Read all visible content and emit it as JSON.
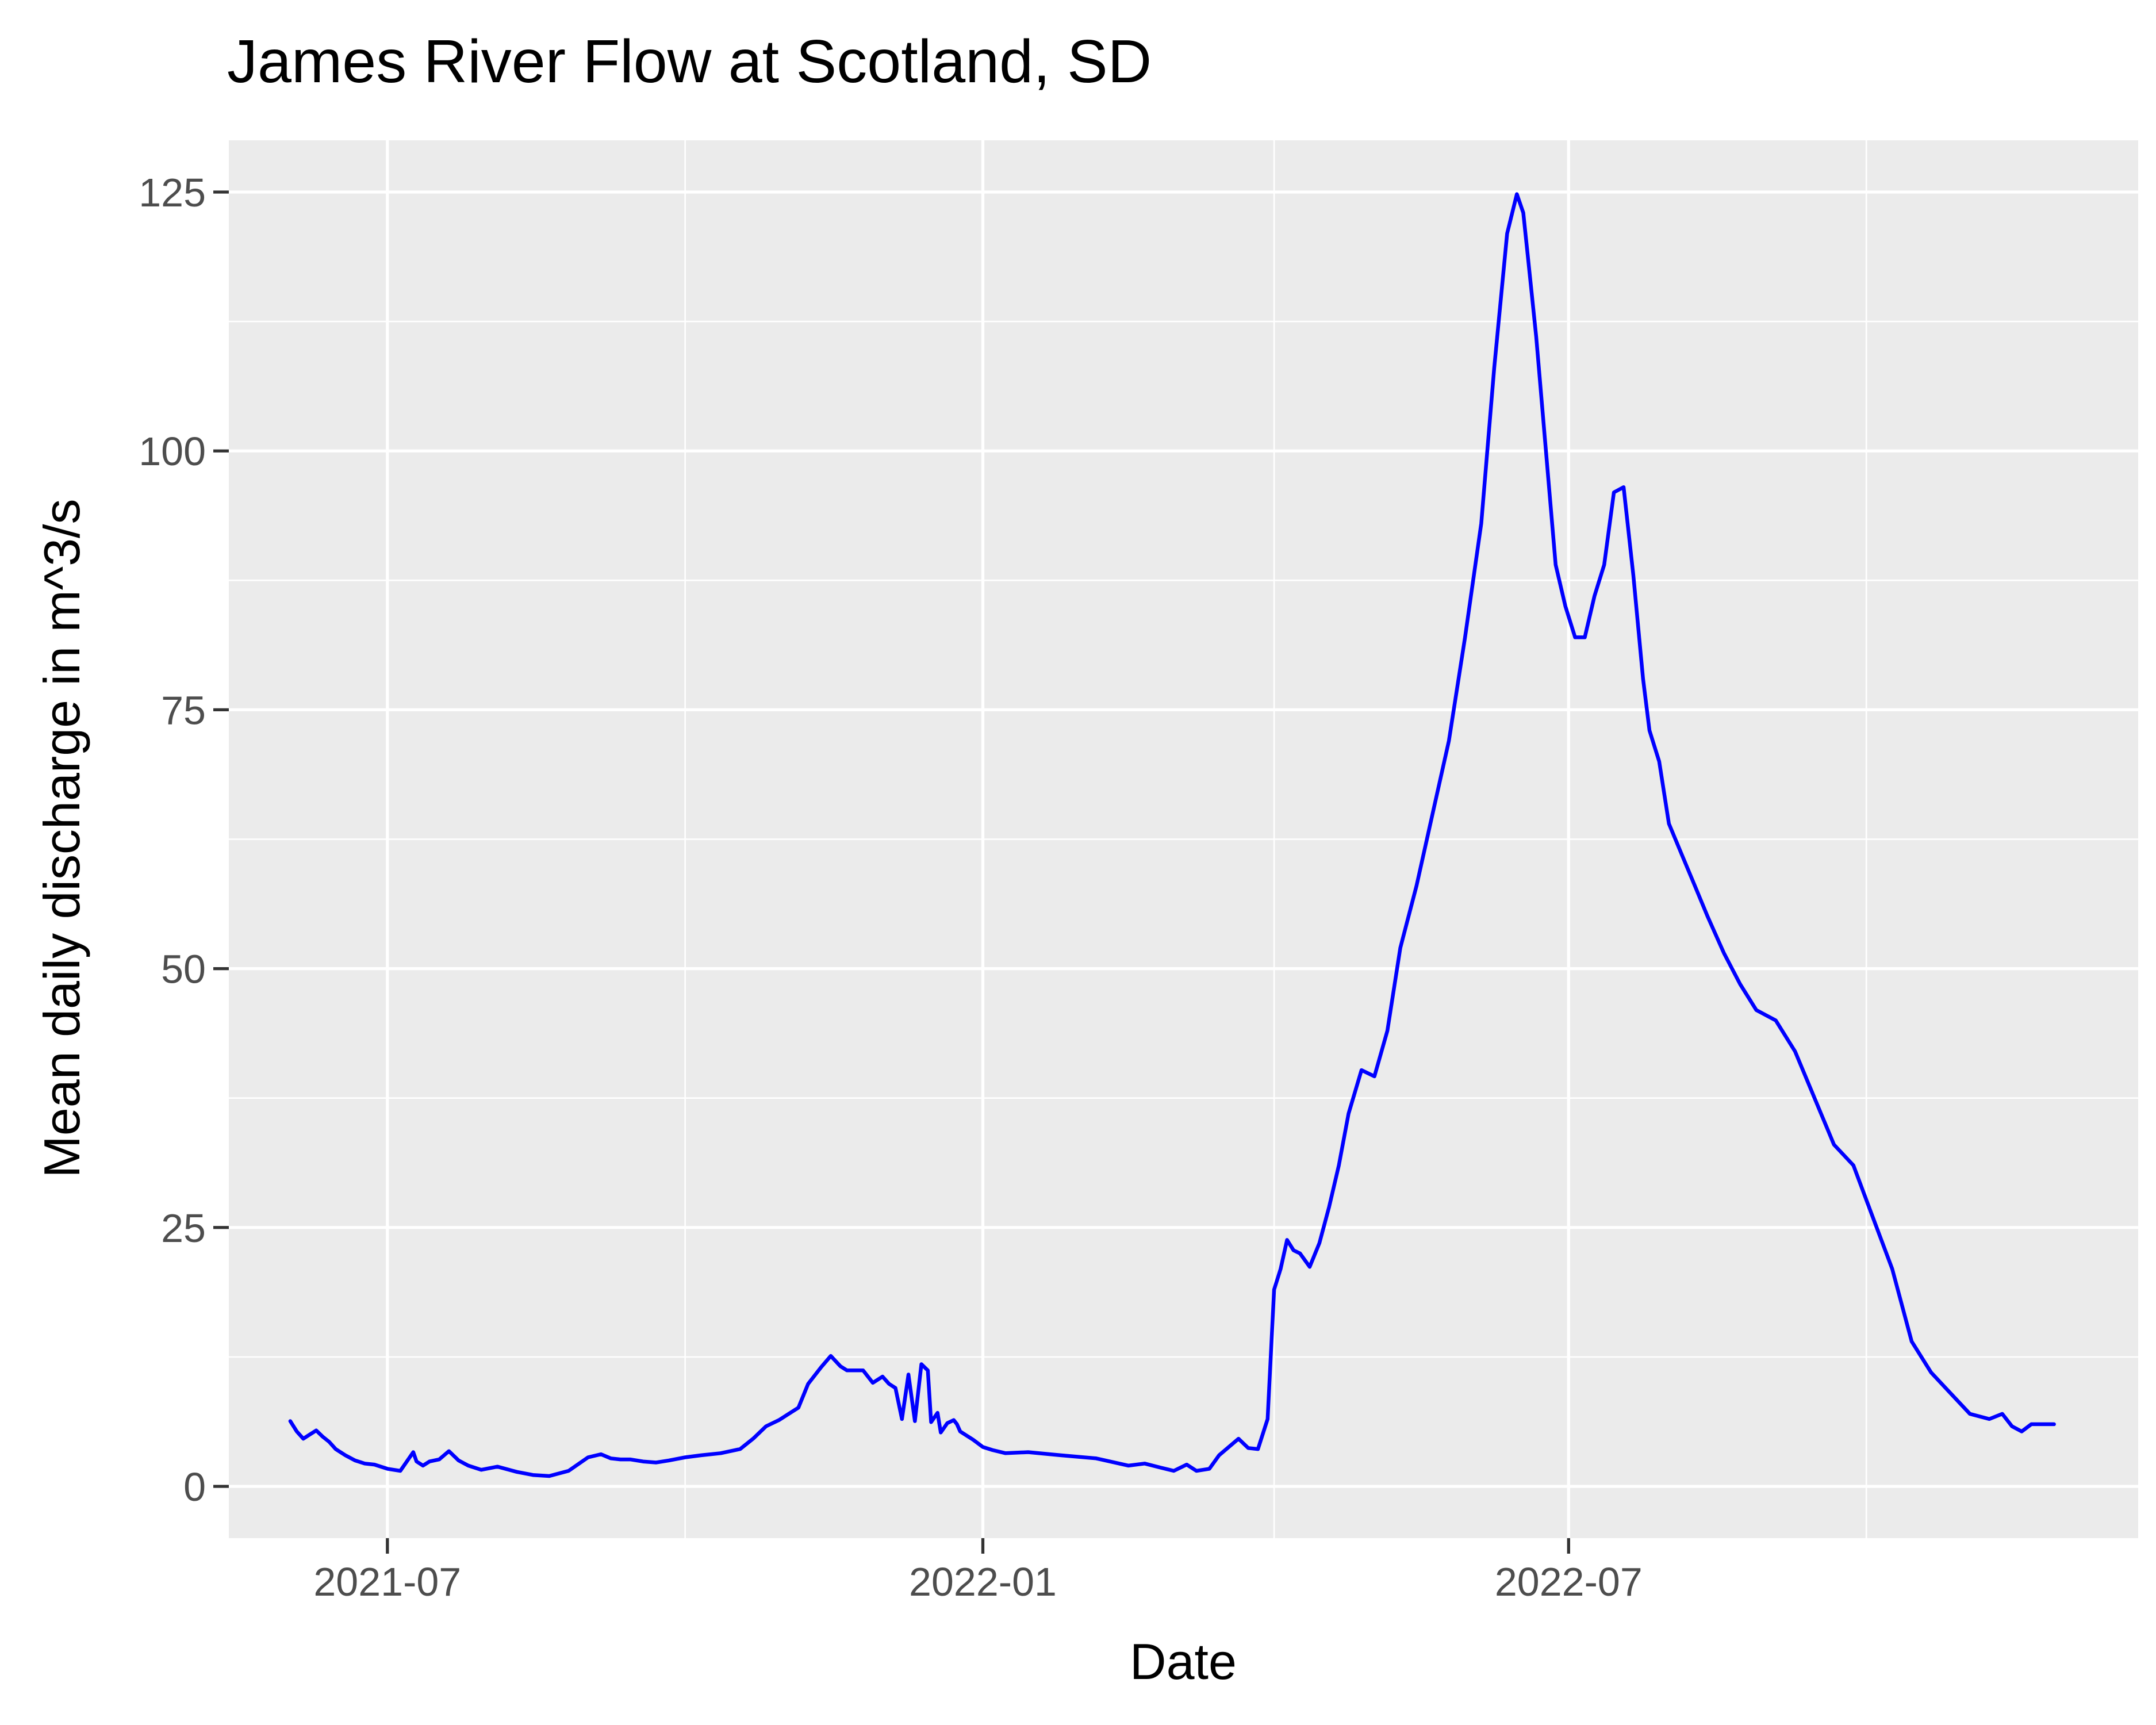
{
  "chart_data": {
    "type": "line",
    "title": "James River Flow at Scotland, SD",
    "xlabel": "Date",
    "ylabel": "Mean daily discharge in m^3/s",
    "xlim": [
      "2021-05-13",
      "2022-12-24"
    ],
    "ylim": [
      -5,
      130
    ],
    "x_ticks": [
      "2021-07",
      "2022-01",
      "2022-07"
    ],
    "x_minor_ticks": [
      "2021-10",
      "2022-04",
      "2022-10"
    ],
    "y_ticks": [
      0,
      25,
      50,
      75,
      100,
      125
    ],
    "grid": true,
    "line_color": "#0000FF",
    "series": [
      {
        "x": [
          "2021-06-01",
          "2021-06-03",
          "2021-06-05",
          "2021-06-07",
          "2021-06-09",
          "2021-06-11",
          "2021-06-13",
          "2021-06-15",
          "2021-06-18",
          "2021-06-21",
          "2021-06-24",
          "2021-06-27",
          "2021-07-01",
          "2021-07-05",
          "2021-07-09",
          "2021-07-10",
          "2021-07-12",
          "2021-07-14",
          "2021-07-17",
          "2021-07-20",
          "2021-07-23",
          "2021-07-26",
          "2021-07-30",
          "2021-08-04",
          "2021-08-10",
          "2021-08-15",
          "2021-08-20",
          "2021-08-26",
          "2021-09-01",
          "2021-09-05",
          "2021-09-08",
          "2021-09-11",
          "2021-09-14",
          "2021-09-18",
          "2021-09-22",
          "2021-09-26",
          "2021-10-01",
          "2021-10-06",
          "2021-10-12",
          "2021-10-18",
          "2021-10-22",
          "2021-10-26",
          "2021-10-30",
          "2021-11-02",
          "2021-11-05",
          "2021-11-08",
          "2021-11-12",
          "2021-11-15",
          "2021-11-18",
          "2021-11-20",
          "2021-11-22",
          "2021-11-25",
          "2021-11-28",
          "2021-12-01",
          "2021-12-03",
          "2021-12-05",
          "2021-12-07",
          "2021-12-09",
          "2021-12-11",
          "2021-12-13",
          "2021-12-15",
          "2021-12-16",
          "2021-12-18",
          "2021-12-19",
          "2021-12-21",
          "2021-12-23",
          "2021-12-24",
          "2021-12-25",
          "2021-12-27",
          "2021-12-29",
          "2022-01-01",
          "2022-01-04",
          "2022-01-08",
          "2022-01-15",
          "2022-01-25",
          "2022-02-05",
          "2022-02-15",
          "2022-02-20",
          "2022-02-25",
          "2022-03-01",
          "2022-03-05",
          "2022-03-08",
          "2022-03-12",
          "2022-03-15",
          "2022-03-18",
          "2022-03-21",
          "2022-03-24",
          "2022-03-27",
          "2022-03-30",
          "2022-04-01",
          "2022-04-03",
          "2022-04-05",
          "2022-04-07",
          "2022-04-09",
          "2022-04-12",
          "2022-04-15",
          "2022-04-18",
          "2022-04-21",
          "2022-04-24",
          "2022-04-28",
          "2022-05-02",
          "2022-05-06",
          "2022-05-10",
          "2022-05-15",
          "2022-05-20",
          "2022-05-25",
          "2022-05-30",
          "2022-06-04",
          "2022-06-08",
          "2022-06-12",
          "2022-06-15",
          "2022-06-17",
          "2022-06-19",
          "2022-06-21",
          "2022-06-24",
          "2022-06-27",
          "2022-06-30",
          "2022-07-03",
          "2022-07-06",
          "2022-07-09",
          "2022-07-12",
          "2022-07-15",
          "2022-07-18",
          "2022-07-21",
          "2022-07-24",
          "2022-07-26",
          "2022-07-29",
          "2022-08-01",
          "2022-08-05",
          "2022-08-09",
          "2022-08-13",
          "2022-08-18",
          "2022-08-23",
          "2022-08-28",
          "2022-09-03",
          "2022-09-09",
          "2022-09-15",
          "2022-09-21",
          "2022-09-27",
          "2022-10-03",
          "2022-10-09",
          "2022-10-15",
          "2022-10-21",
          "2022-10-27",
          "2022-11-02",
          "2022-11-08",
          "2022-11-12",
          "2022-11-15",
          "2022-11-18",
          "2022-11-21",
          "2022-11-24",
          "2022-11-26",
          "2022-11-28"
        ],
        "values": [
          6.3,
          5.3,
          4.6,
          5.0,
          5.4,
          4.8,
          4.3,
          3.6,
          3.0,
          2.5,
          2.2,
          2.1,
          1.7,
          1.5,
          3.3,
          2.4,
          2.0,
          2.4,
          2.6,
          3.4,
          2.5,
          2.0,
          1.6,
          1.9,
          1.4,
          1.1,
          1.0,
          1.5,
          2.8,
          3.1,
          2.7,
          2.6,
          2.6,
          2.4,
          2.3,
          2.5,
          2.8,
          3.0,
          3.2,
          3.6,
          4.6,
          5.8,
          6.4,
          7.0,
          7.6,
          9.9,
          11.5,
          12.6,
          11.6,
          11.2,
          11.2,
          11.2,
          10.0,
          10.6,
          9.9,
          9.5,
          6.5,
          10.8,
          6.3,
          11.8,
          11.2,
          6.2,
          7.1,
          5.2,
          6.1,
          6.4,
          6.0,
          5.3,
          4.9,
          4.5,
          3.8,
          3.5,
          3.2,
          3.3,
          3.0,
          2.7,
          2.0,
          2.2,
          1.8,
          1.5,
          2.1,
          1.5,
          1.7,
          3.0,
          3.8,
          4.6,
          3.7,
          3.6,
          6.5,
          19.0,
          21.0,
          23.8,
          22.8,
          22.5,
          21.2,
          23.5,
          27.0,
          31.0,
          36.0,
          40.2,
          39.6,
          44.0,
          52.0,
          58.0,
          65.0,
          72.0,
          82.0,
          93.0,
          108.0,
          121.0,
          124.8,
          123.0,
          117.0,
          111.0,
          100.0,
          89.0,
          85.0,
          82.0,
          82.0,
          86.0,
          89.0,
          96.0,
          96.5,
          88.0,
          78.0,
          73.0,
          70.0,
          64.0,
          61.0,
          58.0,
          55.0,
          51.5,
          48.5,
          46.0,
          45.0,
          42.0,
          37.5,
          33.0,
          31.0,
          26.0,
          21.0,
          14.0,
          11.0,
          9.0,
          7.0,
          6.5,
          7.0,
          5.8,
          5.3,
          6.0,
          6.0,
          6.0,
          6.0
        ]
      }
    ]
  }
}
